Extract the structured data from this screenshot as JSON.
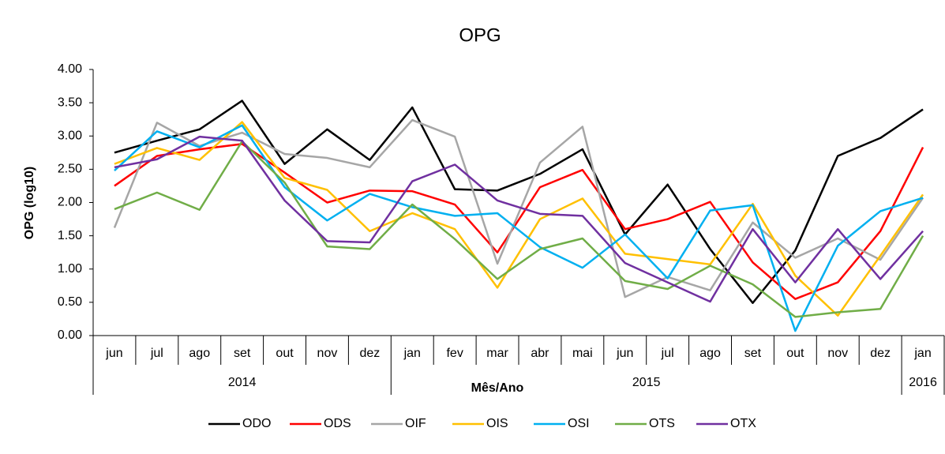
{
  "chart_data": {
    "type": "line",
    "title": "OPG",
    "ylabel": "OPG (log10)",
    "xlabel": "Mês/Ano",
    "categories": [
      "jun",
      "jul",
      "ago",
      "set",
      "out",
      "nov",
      "dez",
      "jan",
      "fev",
      "mar",
      "abr",
      "mai",
      "jun",
      "jul",
      "ago",
      "set",
      "out",
      "nov",
      "dez",
      "jan"
    ],
    "category_groups": [
      "2014",
      null,
      null,
      null,
      null,
      null,
      null,
      "2015",
      null,
      null,
      null,
      null,
      null,
      null,
      null,
      null,
      null,
      null,
      null,
      "2016"
    ],
    "ylim": [
      0,
      4
    ],
    "yticks": [
      {
        "value": 0,
        "label": "0.00"
      },
      {
        "value": 0.5,
        "label": "0.50"
      },
      {
        "value": 1,
        "label": "1.00"
      },
      {
        "value": 1.5,
        "label": "1.50"
      },
      {
        "value": 2,
        "label": "2.00"
      },
      {
        "value": 2.5,
        "label": "2.50"
      },
      {
        "value": 3,
        "label": "3.00"
      },
      {
        "value": 3.5,
        "label": "3.50"
      },
      {
        "value": 4,
        "label": "4.00"
      }
    ],
    "grid": false,
    "legend": "bottom",
    "series": [
      {
        "name": "ODO",
        "color": "#000000",
        "values": [
          2.75,
          2.93,
          3.1,
          3.53,
          2.58,
          3.1,
          2.64,
          3.43,
          2.2,
          2.18,
          2.43,
          2.8,
          1.52,
          2.27,
          1.3,
          0.49,
          1.28,
          2.7,
          2.97,
          3.4
        ]
      },
      {
        "name": "ODS",
        "color": "#ff0000",
        "values": [
          2.25,
          2.7,
          2.8,
          2.88,
          2.45,
          2.0,
          2.18,
          2.17,
          1.97,
          1.25,
          2.23,
          2.49,
          1.6,
          1.75,
          2.01,
          1.1,
          0.55,
          0.8,
          1.57,
          2.83
        ]
      },
      {
        "name": "OIF",
        "color": "#a6a6a6",
        "values": [
          1.62,
          3.2,
          2.85,
          3.05,
          2.73,
          2.67,
          2.53,
          3.24,
          2.99,
          1.08,
          2.6,
          3.14,
          0.58,
          0.88,
          0.68,
          1.7,
          1.17,
          1.46,
          1.14,
          2.07
        ]
      },
      {
        "name": "OIS",
        "color": "#ffc000",
        "values": [
          2.58,
          2.82,
          2.64,
          3.21,
          2.37,
          2.19,
          1.57,
          1.84,
          1.6,
          0.72,
          1.75,
          2.06,
          1.23,
          1.15,
          1.07,
          1.98,
          0.9,
          0.3,
          1.2,
          2.12
        ]
      },
      {
        "name": "OSI",
        "color": "#00b0f0",
        "values": [
          2.48,
          3.07,
          2.83,
          3.16,
          2.23,
          1.73,
          2.13,
          1.93,
          1.8,
          1.84,
          1.33,
          1.02,
          1.52,
          0.86,
          1.88,
          1.96,
          0.07,
          1.35,
          1.87,
          2.07
        ]
      },
      {
        "name": "OTS",
        "color": "#70ad47",
        "values": [
          1.9,
          2.15,
          1.89,
          2.92,
          2.3,
          1.34,
          1.3,
          1.97,
          1.45,
          0.85,
          1.3,
          1.46,
          0.82,
          0.7,
          1.05,
          0.77,
          0.28,
          0.35,
          0.4,
          1.5
        ]
      },
      {
        "name": "OTX",
        "color": "#7030a0",
        "values": [
          2.53,
          2.65,
          2.99,
          2.93,
          2.03,
          1.42,
          1.4,
          2.32,
          2.57,
          2.03,
          1.83,
          1.8,
          1.09,
          0.8,
          0.51,
          1.6,
          0.8,
          1.6,
          0.85,
          1.57
        ]
      }
    ]
  }
}
